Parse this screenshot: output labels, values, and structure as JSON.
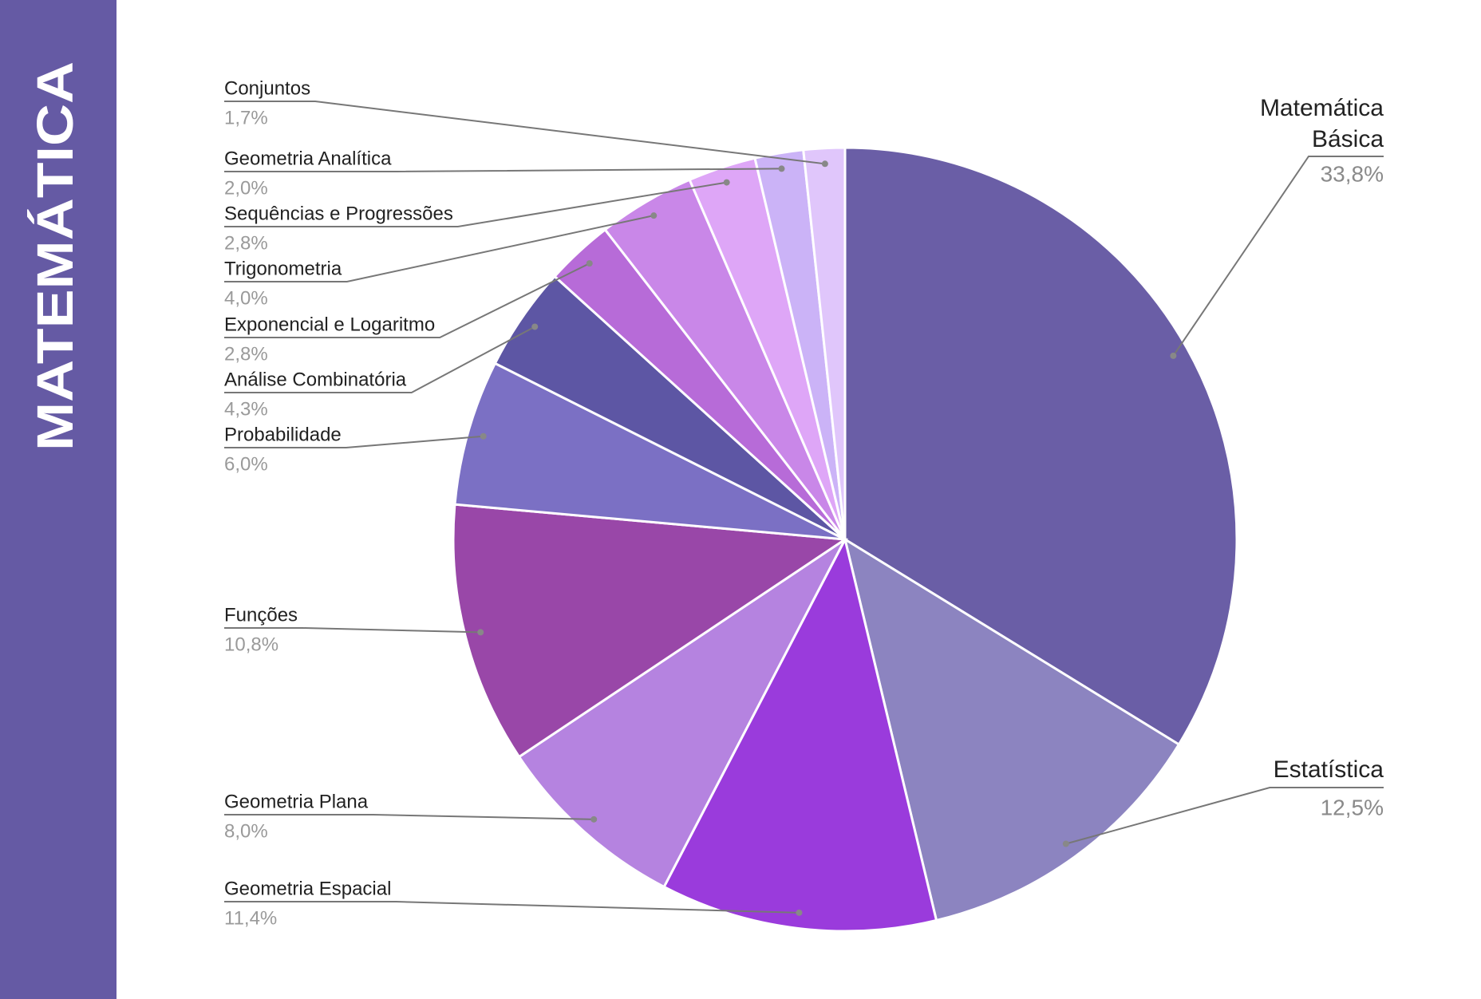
{
  "sidebar_title": "MATEMÁTICA",
  "chart_data": {
    "type": "pie",
    "categories": [
      "Matemática Básica",
      "Estatística",
      "Geometria Espacial",
      "Geometria Plana",
      "Funções",
      "Probabilidade",
      "Análise Combinatória",
      "Exponencial e Logaritmo",
      "Trigonometria",
      "Sequências e Progressões",
      "Geometria Analítica",
      "Conjuntos"
    ],
    "values": [
      33.8,
      12.5,
      11.4,
      8.0,
      10.8,
      6.0,
      4.3,
      2.8,
      4.0,
      2.8,
      2.0,
      1.7
    ],
    "value_labels": [
      "33,8%",
      "12,5%",
      "11,4%",
      "8,0%",
      "10,8%",
      "6,0%",
      "4,3%",
      "2,8%",
      "4,0%",
      "2,8%",
      "2,0%",
      "1,7%"
    ],
    "colors": [
      "#6a5ea6",
      "#8c84c0",
      "#9a3bdc",
      "#b583e0",
      "#9947a8",
      "#7b70c4",
      "#5d56a4",
      "#b76bd8",
      "#c987e8",
      "#dea6f7",
      "#cbb3f7",
      "#e0c6fb"
    ]
  }
}
